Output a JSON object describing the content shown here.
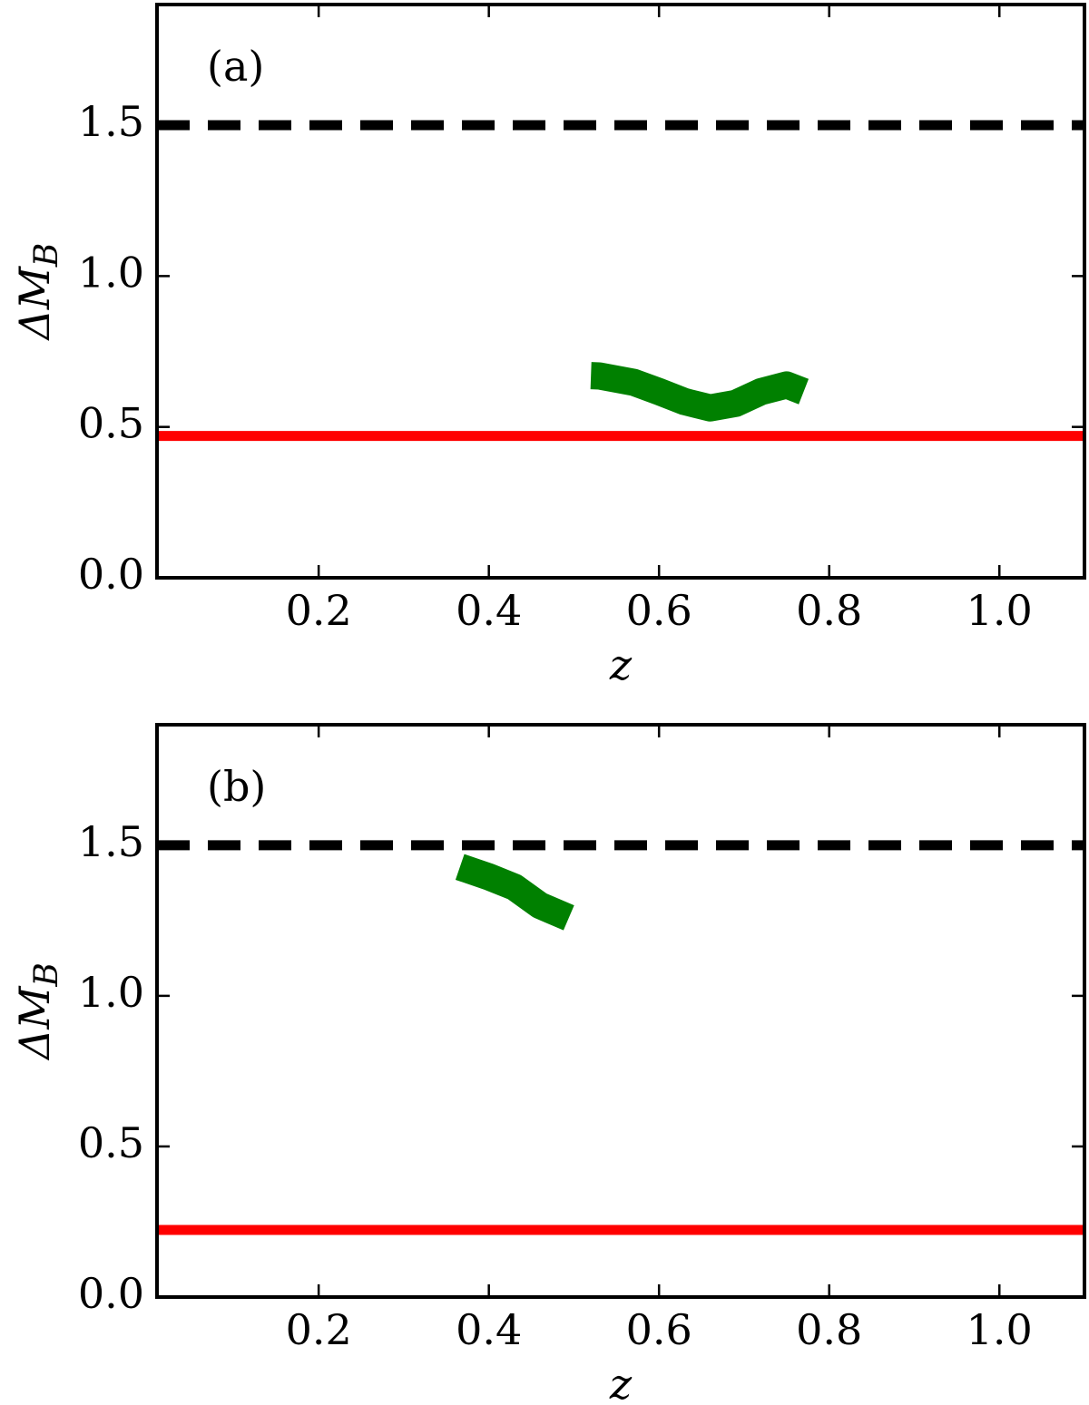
{
  "chart_data": [
    {
      "type": "line",
      "panel_label": "(a)",
      "x_label": "z",
      "y_label": {
        "text": "ΔM",
        "subscript": "B"
      },
      "xlim": [
        0.01,
        1.1
      ],
      "ylim": [
        0,
        1.9
      ],
      "xticks": [
        0.2,
        0.4,
        0.6,
        0.8,
        {
          "value": 1,
          "label": "1.0"
        }
      ],
      "yticks": [
        {
          "value": 0,
          "label": "0.0"
        },
        0.5,
        {
          "value": 1,
          "label": "1.0"
        },
        1.5
      ],
      "hlines": [
        {
          "value": 1.5,
          "color": "#000000",
          "style": "dashed"
        },
        {
          "value": 0.47,
          "color": "#ff0000",
          "style": "solid"
        }
      ],
      "series": [
        {
          "color": "#008000",
          "x": [
            0.52,
            0.53,
            0.57,
            0.6,
            0.63,
            0.66,
            0.69,
            0.72,
            0.75,
            0.77
          ],
          "values": [
            0.67,
            0.669,
            0.648,
            0.617,
            0.584,
            0.563,
            0.578,
            0.617,
            0.639,
            0.617
          ]
        }
      ]
    },
    {
      "type": "line",
      "panel_label": "(b)",
      "x_label": "z",
      "y_label": {
        "text": "ΔM",
        "subscript": "B"
      },
      "xlim": [
        0.01,
        1.1
      ],
      "ylim": [
        0,
        1.9
      ],
      "xticks": [
        0.2,
        0.4,
        0.6,
        0.8,
        {
          "value": 1,
          "label": "1.0"
        }
      ],
      "yticks": [
        {
          "value": 0,
          "label": "0.0"
        },
        0.5,
        {
          "value": 1,
          "label": "1.0"
        },
        1.5
      ],
      "hlines": [
        {
          "value": 1.5,
          "color": "#000000",
          "style": "dashed"
        },
        {
          "value": 0.223,
          "color": "#ff0000",
          "style": "solid"
        }
      ],
      "series": [
        {
          "color": "#008000",
          "x": [
            0.366,
            0.4,
            0.43,
            0.46,
            0.494
          ],
          "values": [
            1.428,
            1.395,
            1.361,
            1.3,
            1.259
          ]
        }
      ]
    }
  ]
}
